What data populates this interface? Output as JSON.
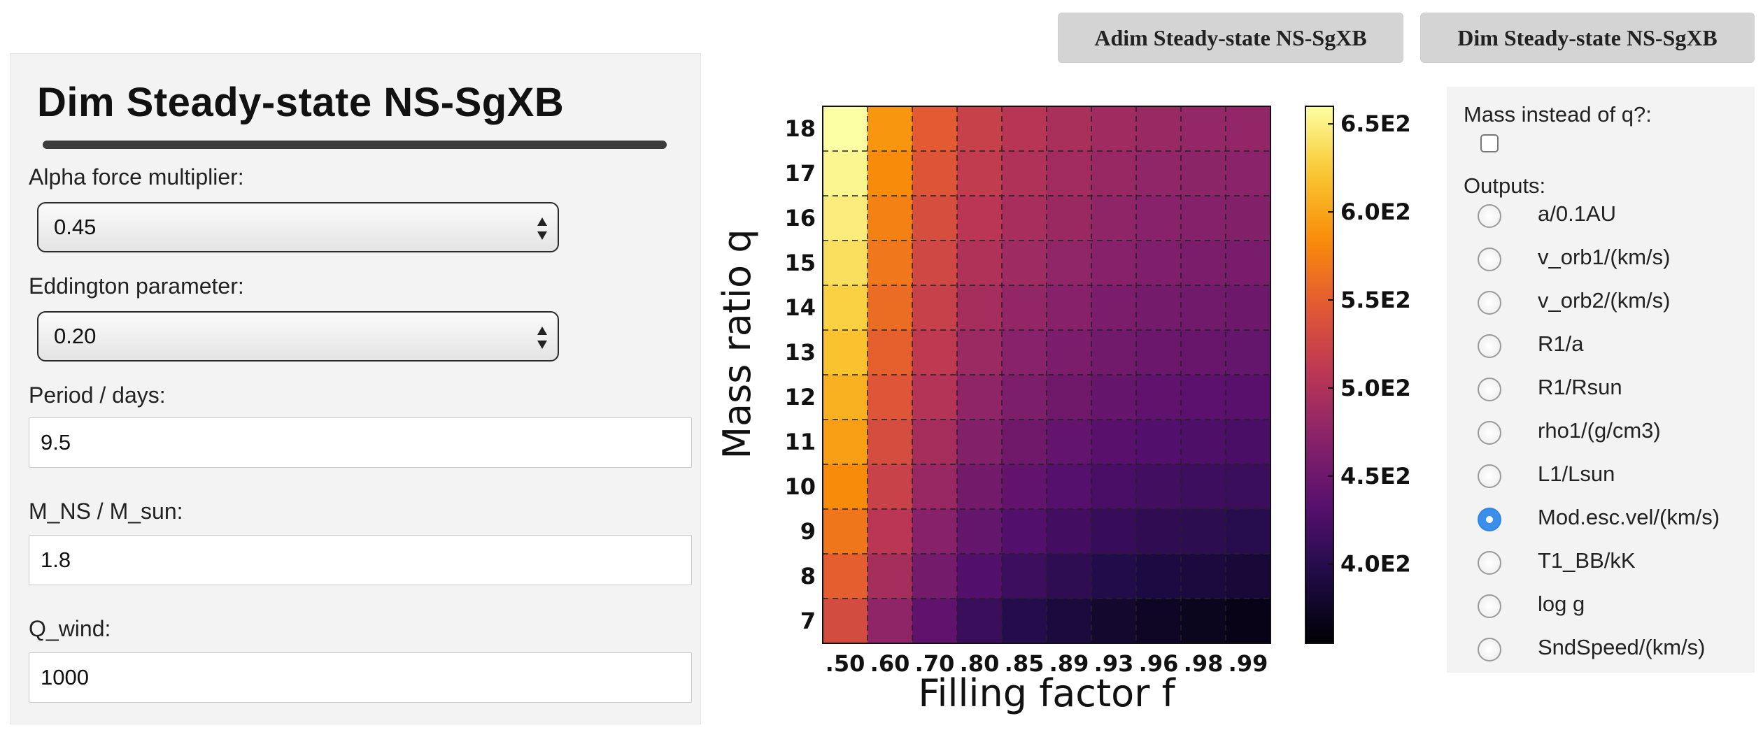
{
  "top_buttons": {
    "adim_label": "Adim Steady-state NS-SgXB",
    "dim_label": "Dim Steady-state NS-SgXB"
  },
  "left_panel": {
    "title": "Dim Steady-state NS-SgXB",
    "alpha_label": "Alpha force multiplier:",
    "alpha_value": "0.45",
    "eddington_label": "Eddington parameter:",
    "eddington_value": "0.20",
    "period_label": "Period / days:",
    "period_value": "9.5",
    "mns_label": "M_NS / M_sun:",
    "mns_value": "1.8",
    "qwind_label": "Q_wind:",
    "qwind_value": "1000"
  },
  "right_panel": {
    "mass_label": "Mass instead of q?:",
    "mass_checked": false,
    "outputs_label": "Outputs:",
    "options": [
      {
        "label": "a/0.1AU",
        "selected": false
      },
      {
        "label": "v_orb1/(km/s)",
        "selected": false
      },
      {
        "label": "v_orb2/(km/s)",
        "selected": false
      },
      {
        "label": "R1/a",
        "selected": false
      },
      {
        "label": "R1/Rsun",
        "selected": false
      },
      {
        "label": "rho1/(g/cm3)",
        "selected": false
      },
      {
        "label": "L1/Lsun",
        "selected": false
      },
      {
        "label": "Mod.esc.vel/(km/s)",
        "selected": true
      },
      {
        "label": "T1_BB/kK",
        "selected": false
      },
      {
        "label": "log g",
        "selected": false
      },
      {
        "label": "SndSpeed/(km/s)",
        "selected": false
      }
    ]
  },
  "chart_data": {
    "type": "heatmap",
    "xlabel": "Filling factor f",
    "ylabel": "Mass ratio q",
    "x_categories": [
      ".50",
      ".60",
      ".70",
      ".80",
      ".85",
      ".89",
      ".93",
      ".96",
      ".98",
      ".99"
    ],
    "y_categories": [
      "18",
      "17",
      "16",
      "15",
      "14",
      "13",
      "12",
      "11",
      "10",
      "9",
      "8",
      "7"
    ],
    "colorbar_ticks": [
      "6.5E2",
      "6.0E2",
      "5.5E2",
      "5.0E2",
      "4.5E2",
      "4.0E2"
    ],
    "colorbar_tick_values": [
      650,
      600,
      550,
      500,
      450,
      400
    ],
    "color_range": [
      355,
      660
    ],
    "colormap": "inferno",
    "grid": true,
    "values": [
      [
        660,
        590,
        548,
        520,
        506,
        496,
        488,
        483,
        480,
        478
      ],
      [
        654,
        583,
        542,
        514,
        500,
        490,
        482,
        477,
        474,
        472
      ],
      [
        647,
        576,
        535,
        508,
        494,
        484,
        476,
        471,
        468,
        466
      ],
      [
        638,
        569,
        528,
        501,
        487,
        477,
        469,
        464,
        461,
        459
      ],
      [
        629,
        561,
        520,
        493,
        479,
        469,
        461,
        456,
        453,
        451
      ],
      [
        619,
        552,
        512,
        485,
        471,
        461,
        453,
        448,
        445,
        443
      ],
      [
        608,
        543,
        503,
        476,
        462,
        452,
        444,
        439,
        436,
        434
      ],
      [
        596,
        533,
        493,
        466,
        452,
        442,
        434,
        429,
        426,
        424
      ],
      [
        583,
        521,
        482,
        455,
        441,
        431,
        423,
        418,
        415,
        413
      ],
      [
        568,
        508,
        470,
        443,
        429,
        419,
        411,
        406,
        403,
        401
      ],
      [
        551,
        493,
        456,
        429,
        415,
        405,
        397,
        391,
        388,
        386
      ],
      [
        532,
        476,
        439,
        413,
        399,
        389,
        380,
        374,
        370,
        366
      ]
    ]
  }
}
